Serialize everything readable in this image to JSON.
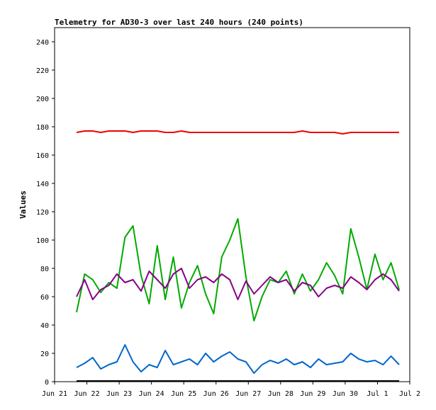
{
  "chart_data": {
    "type": "line",
    "title": "Telemetry for AD30-3 over last 240 hours (240 points)",
    "xlabel": "",
    "ylabel": "Values",
    "xlim": [
      "Jun 21",
      "Jul 2"
    ],
    "ylim": [
      0,
      250
    ],
    "grid": false,
    "legend": "none",
    "x_tick_labels": [
      "Jun 21",
      "Jun 22",
      "Jun 23",
      "Jun 24",
      "Jun 25",
      "Jun 26",
      "Jun 27",
      "Jun 28",
      "Jun 29",
      "Jun 30",
      "Jul 1",
      "Jul 2"
    ],
    "y_ticks": [
      0,
      20,
      40,
      60,
      80,
      100,
      120,
      140,
      160,
      180,
      200,
      220,
      240
    ],
    "x_dates": [
      "Jun 21 18:00",
      "Jun 22 00:00",
      "Jun 22 06:00",
      "Jun 22 12:00",
      "Jun 22 18:00",
      "Jun 23 00:00",
      "Jun 23 06:00",
      "Jun 23 12:00",
      "Jun 23 18:00",
      "Jun 24 00:00",
      "Jun 24 06:00",
      "Jun 24 12:00",
      "Jun 24 18:00",
      "Jun 25 00:00",
      "Jun 25 06:00",
      "Jun 25 12:00",
      "Jun 25 18:00",
      "Jun 26 00:00",
      "Jun 26 06:00",
      "Jun 26 12:00",
      "Jun 26 18:00",
      "Jun 27 00:00",
      "Jun 27 06:00",
      "Jun 27 12:00",
      "Jun 27 18:00",
      "Jun 28 00:00",
      "Jun 28 06:00",
      "Jun 28 12:00",
      "Jun 28 18:00",
      "Jun 29 00:00",
      "Jun 29 06:00",
      "Jun 29 12:00",
      "Jun 29 18:00",
      "Jun 30 00:00",
      "Jun 30 06:00",
      "Jun 30 12:00",
      "Jun 30 18:00",
      "Jul 1 00:00",
      "Jul 1 06:00",
      "Jul 1 12:00",
      "Jul 1 18:00"
    ],
    "series": [
      {
        "color": "#ee0000",
        "values": [
          176,
          177,
          177,
          176,
          177,
          177,
          177,
          176,
          177,
          177,
          177,
          176,
          176,
          177,
          176,
          176,
          176,
          176,
          176,
          176,
          176,
          176,
          176,
          176,
          176,
          176,
          176,
          176,
          177,
          176,
          176,
          176,
          176,
          175,
          176,
          176,
          176,
          176,
          176,
          176,
          176
        ]
      },
      {
        "color": "#00aa00",
        "values": [
          49,
          76,
          72,
          63,
          70,
          66,
          102,
          110,
          75,
          55,
          96,
          58,
          88,
          52,
          70,
          82,
          62,
          48,
          88,
          100,
          115,
          74,
          43,
          60,
          72,
          70,
          78,
          62,
          76,
          64,
          72,
          84,
          75,
          62,
          108,
          88,
          65,
          90,
          72,
          84,
          65
        ]
      },
      {
        "color": "#880088",
        "values": [
          60,
          72,
          58,
          65,
          68,
          76,
          70,
          72,
          64,
          78,
          72,
          66,
          76,
          80,
          66,
          72,
          74,
          70,
          76,
          72,
          58,
          71,
          62,
          68,
          74,
          70,
          72,
          64,
          70,
          68,
          60,
          66,
          68,
          66,
          74,
          70,
          65,
          72,
          76,
          72,
          64
        ]
      },
      {
        "color": "#0066cc",
        "values": [
          10,
          13,
          17,
          9,
          12,
          14,
          26,
          14,
          7,
          12,
          10,
          22,
          12,
          14,
          16,
          12,
          20,
          14,
          18,
          21,
          16,
          14,
          6,
          12,
          15,
          13,
          16,
          12,
          14,
          10,
          16,
          12,
          13,
          14,
          20,
          16,
          14,
          15,
          12,
          18,
          12
        ]
      }
    ]
  }
}
